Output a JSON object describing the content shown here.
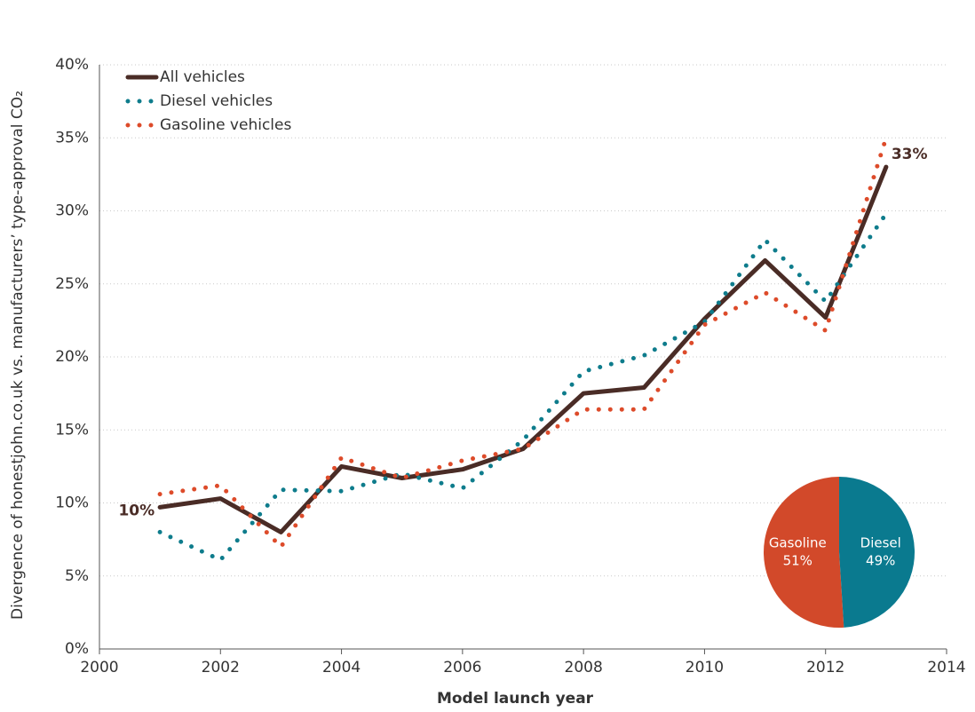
{
  "chart_data": [
    {
      "type": "line",
      "x_label": "Model launch year",
      "y_label": "Divergence of honestjohn.co.uk vs. manufacturers’ type-approval CO₂",
      "x": [
        2001,
        2002,
        2003,
        2004,
        2005,
        2006,
        2007,
        2008,
        2009,
        2010,
        2011,
        2012,
        2013
      ],
      "series": [
        {
          "name": "All vehicles",
          "color": "#4a2c26",
          "style": "solid",
          "values": [
            9.7,
            10.3,
            8.0,
            12.5,
            11.7,
            12.3,
            13.7,
            17.5,
            17.9,
            22.6,
            26.6,
            22.7,
            33.0
          ],
          "value_labels": [
            "10%",
            null,
            null,
            null,
            null,
            null,
            null,
            null,
            null,
            null,
            null,
            null,
            "33%"
          ]
        },
        {
          "name": "Diesel vehicles",
          "color": "#0e7c8c",
          "style": "dotted",
          "values": [
            8.0,
            6.1,
            10.9,
            10.8,
            12.0,
            11.0,
            14.3,
            19.0,
            20.1,
            22.4,
            28.0,
            23.8,
            29.8
          ]
        },
        {
          "name": "Gasoline vehicles",
          "color": "#dd4b2a",
          "style": "dotted",
          "values": [
            10.6,
            11.2,
            7.0,
            13.1,
            11.7,
            12.9,
            13.7,
            16.4,
            16.4,
            22.2,
            24.4,
            21.8,
            35.0
          ]
        }
      ],
      "xlim": [
        2000,
        2014
      ],
      "xticks": [
        2000,
        2002,
        2004,
        2006,
        2008,
        2010,
        2012,
        2014
      ],
      "ylim": [
        0,
        40
      ],
      "yticks": [
        {
          "value": 0,
          "label": "0%"
        },
        {
          "value": 5,
          "label": "5%"
        },
        {
          "value": 10,
          "label": "10%"
        },
        {
          "value": 15,
          "label": "15%"
        },
        {
          "value": 20,
          "label": "20%"
        },
        {
          "value": 25,
          "label": "25%"
        },
        {
          "value": 30,
          "label": "30%"
        },
        {
          "value": 35,
          "label": "35%"
        },
        {
          "value": 40,
          "label": "40%"
        }
      ],
      "grid": true,
      "legend": "top-left"
    },
    {
      "type": "pie",
      "categories": [
        "Gasoline",
        "Diesel"
      ],
      "values": [
        51,
        49
      ],
      "value_labels": [
        "51%",
        "49%"
      ],
      "colors": [
        "#d2492a",
        "#0a7a8f"
      ]
    }
  ]
}
